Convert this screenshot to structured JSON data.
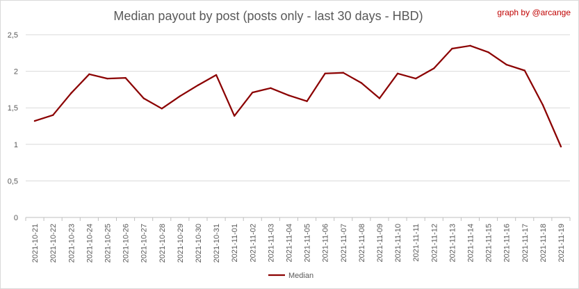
{
  "chart_data": {
    "type": "line",
    "title": "Median payout by post (posts only - last 30 days - HBD)",
    "credit": "graph by @arcange",
    "xlabel": "",
    "ylabel": "",
    "categories": [
      "2021-10-21",
      "2021-10-22",
      "2021-10-23",
      "2021-10-24",
      "2021-10-25",
      "2021-10-26",
      "2021-10-27",
      "2021-10-28",
      "2021-10-29",
      "2021-10-30",
      "2021-10-31",
      "2021-11-01",
      "2021-11-02",
      "2021-11-03",
      "2021-11-04",
      "2021-11-05",
      "2021-11-06",
      "2021-11-07",
      "2021-11-08",
      "2021-11-09",
      "2021-11-10",
      "2021-11-11",
      "2021-11-12",
      "2021-11-13",
      "2021-11-14",
      "2021-11-15",
      "2021-11-16",
      "2021-11-17",
      "2021-11-18",
      "2021-11-19"
    ],
    "series": [
      {
        "name": "Median",
        "color": "#8b0000",
        "values": [
          1.32,
          1.4,
          1.7,
          1.96,
          1.9,
          1.91,
          1.63,
          1.49,
          1.66,
          1.81,
          1.95,
          1.39,
          1.71,
          1.77,
          1.67,
          1.59,
          1.97,
          1.98,
          1.84,
          1.63,
          1.97,
          1.9,
          2.04,
          2.31,
          2.35,
          2.26,
          2.09,
          2.01,
          1.54,
          0.97
        ]
      }
    ],
    "ylim": [
      0,
      2.5
    ],
    "yticks": [
      {
        "value": 0,
        "label": "0"
      },
      {
        "value": 0.5,
        "label": "0,5"
      },
      {
        "value": 1,
        "label": "1"
      },
      {
        "value": 1.5,
        "label": "1,5"
      },
      {
        "value": 2,
        "label": "2"
      },
      {
        "value": 2.5,
        "label": "2,5"
      }
    ],
    "grid": true,
    "legend": "bottom"
  }
}
